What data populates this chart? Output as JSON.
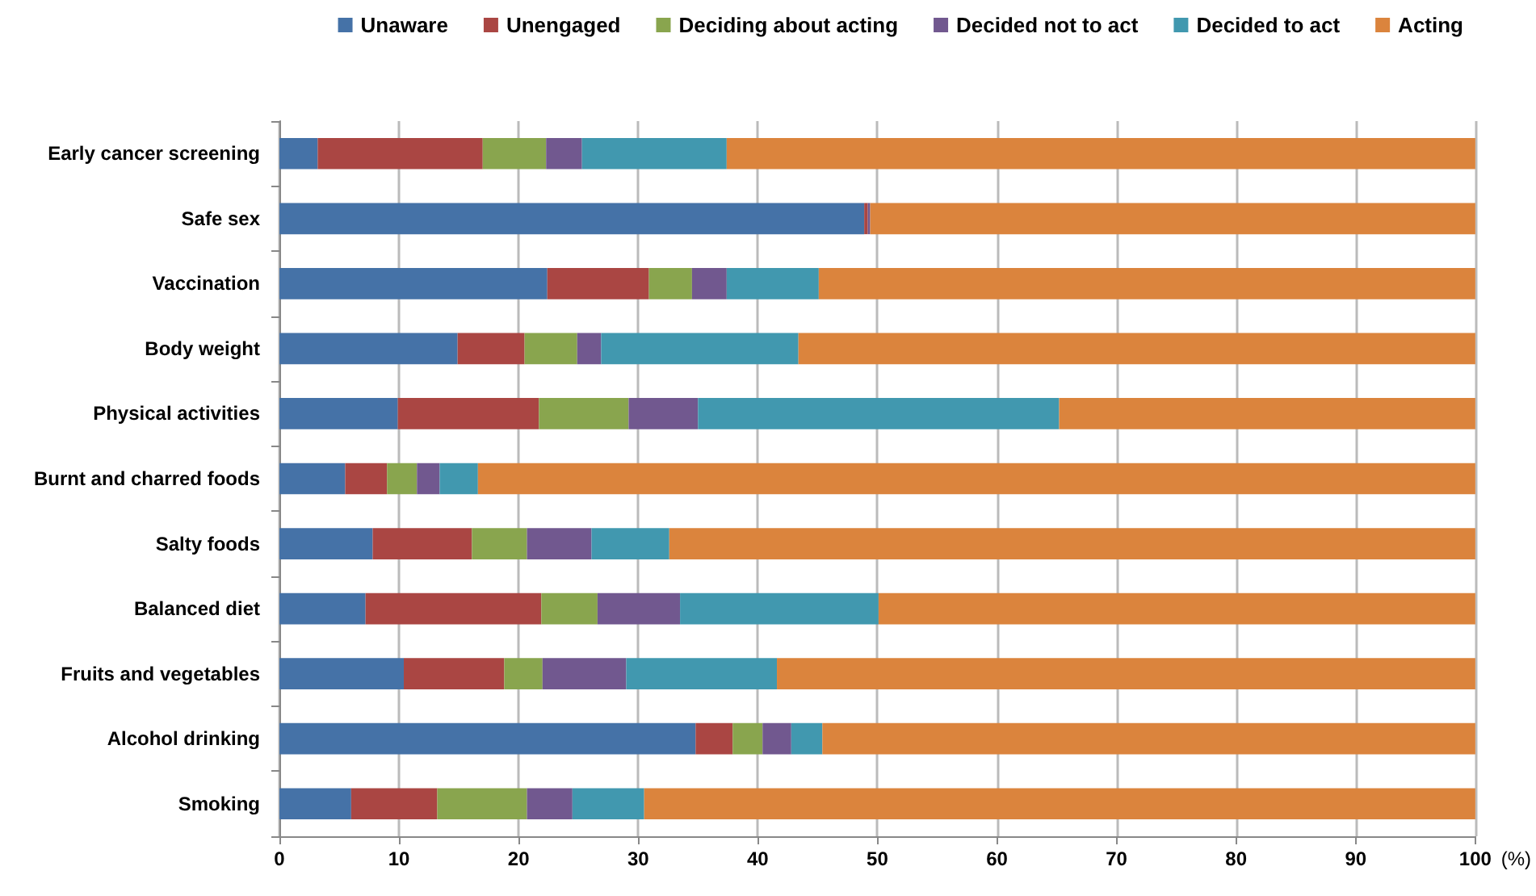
{
  "chart_data": {
    "type": "bar",
    "orientation": "horizontal",
    "stacked": true,
    "xlabel": "(%)",
    "categories": [
      "Early cancer screening",
      "Safe sex",
      "Vaccination",
      "Body weight",
      "Physical activities",
      "Burnt and charred foods",
      "Salty foods",
      "Balanced diet",
      "Fruits and vegetables",
      "Alcohol drinking",
      "Smoking"
    ],
    "series": [
      {
        "name": "Unaware",
        "color": "#4572a7",
        "values": [
          3.2,
          48.9,
          22.4,
          14.9,
          9.9,
          5.5,
          7.8,
          7.2,
          10.4,
          34.8,
          6.0
        ]
      },
      {
        "name": "Unengaged",
        "color": "#aa4643",
        "values": [
          13.8,
          0.3,
          8.5,
          5.6,
          11.8,
          3.5,
          8.3,
          14.7,
          8.4,
          3.1,
          7.2
        ]
      },
      {
        "name": "Deciding about acting",
        "color": "#89a54e",
        "values": [
          5.3,
          0,
          3.6,
          4.4,
          7.5,
          2.5,
          4.6,
          4.7,
          3.2,
          2.5,
          7.5
        ]
      },
      {
        "name": "Decided not to act",
        "color": "#71588f",
        "values": [
          3.0,
          0.2,
          2.9,
          2.0,
          5.8,
          1.9,
          5.4,
          6.9,
          7.0,
          2.4,
          3.8
        ]
      },
      {
        "name": "Decided to act",
        "color": "#4198af",
        "values": [
          12.1,
          0,
          7.7,
          16.5,
          30.2,
          3.2,
          6.5,
          16.6,
          12.6,
          2.6,
          6.0
        ]
      },
      {
        "name": "Acting",
        "color": "#db843d",
        "values": [
          62.6,
          50.6,
          54.9,
          56.6,
          34.8,
          83.4,
          67.4,
          49.9,
          58.4,
          54.6,
          69.5
        ]
      }
    ],
    "xlim": [
      0,
      100
    ],
    "xticks": [
      0,
      10,
      20,
      30,
      40,
      50,
      60,
      70,
      80,
      90,
      100
    ],
    "grid": "x",
    "legend": "top"
  }
}
